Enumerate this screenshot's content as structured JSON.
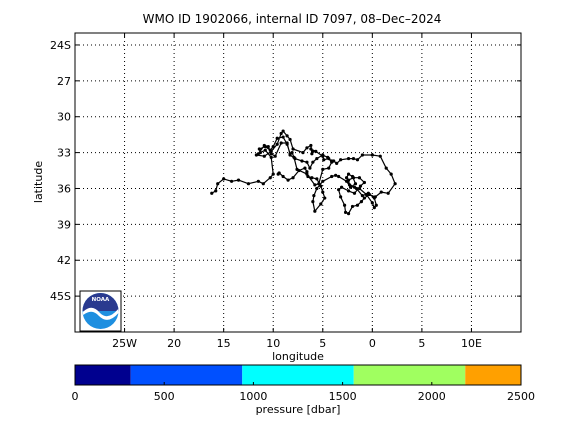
{
  "chart_data": [
    {
      "type": "line",
      "title": "WMO ID 1902066, internal ID 7097, 08–Dec–2024",
      "xlabel": "longitude",
      "ylabel": "latitude",
      "xlim": [
        -30,
        15
      ],
      "ylim": [
        -48,
        -23
      ],
      "grid": true,
      "grid_style": "dotted",
      "x_ticks": [
        -25,
        -20,
        -15,
        -10,
        -5,
        0,
        5,
        10
      ],
      "x_tick_labels": [
        "25W",
        "20",
        "15",
        "10",
        "5",
        "0",
        "5",
        "10E"
      ],
      "y_ticks": [
        -24,
        -27,
        -30,
        -33,
        -36,
        -39,
        -42,
        -45
      ],
      "y_tick_labels": [
        "24S",
        "27",
        "30",
        "33",
        "36",
        "39",
        "42",
        "45S"
      ],
      "track_color": "#000000",
      "series": [
        {
          "x": [
            -16.2,
            -15.8,
            -15.6,
            -15.0,
            -14.2,
            -13.5,
            -12.5,
            -11.5,
            -11.0,
            -10.3,
            -10.0,
            -10.2,
            -10.8,
            -11.3,
            -11.4,
            -10.8,
            -10.3,
            -10.0,
            -9.6,
            -9.0,
            -8.6,
            -8.3,
            -8.1,
            -7.9,
            -7.6,
            -6.6,
            -5.8,
            -5.4,
            -5.0,
            -4.4,
            -4.1,
            -4.5,
            -5.0,
            -5.6,
            -6.0,
            -6.3,
            -6.6,
            -7.1,
            -7.8,
            -8.3,
            -8.6,
            -9.2,
            -9.8,
            -10.2,
            -10.5,
            -10.9,
            -11.5,
            -11.7,
            -10.9,
            -10.2,
            -9.6,
            -9.2,
            -9.0,
            -8.6,
            -8.3,
            -8.0,
            -7.0,
            -6.6,
            -6.2,
            -6.1,
            -6.0,
            -6.2,
            -5.7,
            -5.0,
            -4.9,
            -4.4,
            -4.1,
            -3.9,
            -3.6,
            -3.2,
            -2.4,
            -1.9,
            -1.5,
            -1.0,
            0.0,
            0.8,
            1.4,
            1.9,
            2.3,
            1.6,
            0.9,
            0.3,
            -0.3,
            -0.8,
            -1.1,
            -1.5,
            -2.0,
            -2.4,
            -2.7,
            -2.8,
            -3.2,
            -3.4,
            -3.1,
            -2.4,
            -1.8,
            -1.2,
            -0.8,
            -1.3,
            -1.9,
            -2.4,
            -2.3,
            -1.8,
            -1.3,
            -0.6,
            0.0,
            0.2,
            0.4,
            0.2,
            -0.4,
            -1.0,
            -1.6,
            -2.2,
            -2.6,
            -2.4,
            -2.0,
            -1.7,
            -2.2,
            -2.6,
            -3.4,
            -3.7,
            -4.1,
            -5.0,
            -5.6,
            -5.9,
            -6.0,
            -5.8,
            -5.2,
            -4.8,
            -5.0,
            -5.2,
            -5.6,
            -6.1,
            -6.5,
            -6.6,
            -6.8,
            -7.4,
            -8.0,
            -8.5,
            -9.0,
            -9.4,
            -9.5
          ],
          "y": [
            -36.4,
            -36.2,
            -35.6,
            -35.2,
            -35.4,
            -35.3,
            -35.6,
            -35.4,
            -35.6,
            -35.1,
            -34.8,
            -33.4,
            -32.8,
            -33.0,
            -32.7,
            -32.5,
            -32.8,
            -32.5,
            -31.8,
            -31.7,
            -32.3,
            -33.1,
            -33.0,
            -33.4,
            -34.4,
            -34.8,
            -35.7,
            -35.6,
            -34.4,
            -34.3,
            -33.8,
            -33.4,
            -33.2,
            -33.5,
            -33.8,
            -34.3,
            -33.8,
            -33.7,
            -33.5,
            -33.2,
            -32.2,
            -32.2,
            -33.3,
            -33.1,
            -32.5,
            -32.4,
            -33.1,
            -33.2,
            -33.3,
            -32.9,
            -32.3,
            -31.4,
            -31.2,
            -31.6,
            -31.9,
            -32.7,
            -33.0,
            -32.6,
            -32.4,
            -33.1,
            -32.9,
            -32.7,
            -32.9,
            -33.3,
            -33.6,
            -33.5,
            -33.7,
            -33.7,
            -33.9,
            -33.6,
            -33.5,
            -33.5,
            -33.6,
            -33.2,
            -33.2,
            -33.3,
            -34.3,
            -34.8,
            -35.6,
            -36.4,
            -36.3,
            -36.7,
            -36.5,
            -36.8,
            -37.1,
            -37.4,
            -37.5,
            -38.1,
            -38.0,
            -37.4,
            -36.7,
            -36.1,
            -35.9,
            -36.2,
            -36.4,
            -35.8,
            -35.5,
            -35.1,
            -35.1,
            -35.3,
            -35.7,
            -35.9,
            -36.0,
            -36.5,
            -37.2,
            -37.6,
            -37.4,
            -36.8,
            -36.4,
            -36.6,
            -36.0,
            -35.8,
            -35.1,
            -34.8,
            -35.0,
            -35.6,
            -35.9,
            -35.4,
            -35.0,
            -34.9,
            -35.0,
            -35.4,
            -36.0,
            -36.6,
            -37.1,
            -37.9,
            -37.3,
            -36.8,
            -36.3,
            -35.8,
            -35.2,
            -35.1,
            -35.0,
            -34.6,
            -34.3,
            -34.5,
            -35.1,
            -35.3,
            -35.0,
            -34.7,
            -34.8
          ]
        }
      ]
    },
    {
      "type": "colorbar",
      "xlabel": "pressure [dbar]",
      "range": [
        0,
        2500
      ],
      "ticks": [
        0,
        500,
        1000,
        1500,
        2000,
        2500
      ],
      "tick_labels": [
        "0",
        "500",
        "1000",
        "1500",
        "2000",
        "2500"
      ],
      "bands": [
        {
          "from": 0,
          "to": 312.5,
          "color": "#00008f"
        },
        {
          "from": 312.5,
          "to": 937.5,
          "color": "#0050ff"
        },
        {
          "from": 937.5,
          "to": 1562.5,
          "color": "#00ffff"
        },
        {
          "from": 1562.5,
          "to": 2187.5,
          "color": "#a0ff60"
        },
        {
          "from": 2187.5,
          "to": 2500,
          "color": "#ffa000"
        }
      ]
    }
  ],
  "logo": {
    "text": "NOAA",
    "icon": "noaa-logo-icon",
    "colors": {
      "top": "#2a3a8f",
      "wave": "#ffffff",
      "bottom": "#1e8fe0"
    }
  }
}
